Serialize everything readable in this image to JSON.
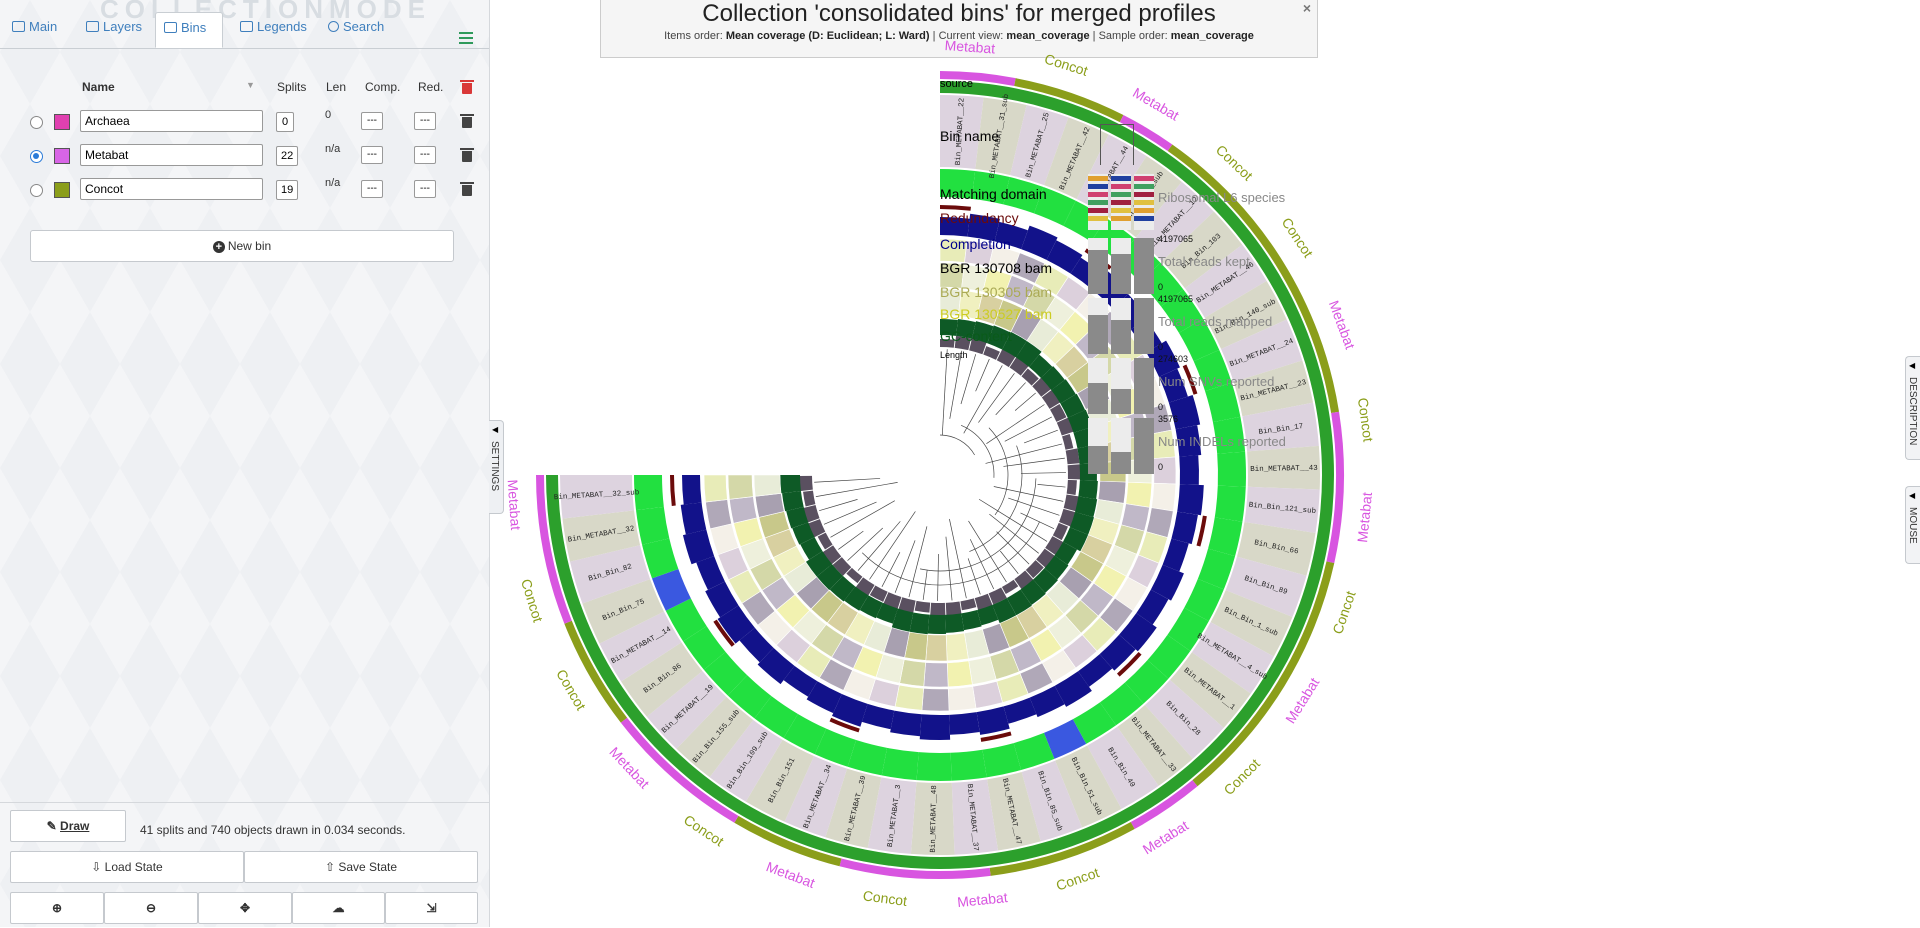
{
  "panel": {
    "watermark": "COLLECTIONMODE",
    "tabs": [
      {
        "label": "Main",
        "icon": "image-icon"
      },
      {
        "label": "Layers",
        "icon": "layers-icon"
      },
      {
        "label": "Bins",
        "icon": "bins-icon"
      },
      {
        "label": "Legends",
        "icon": "legends-icon"
      },
      {
        "label": "Search",
        "icon": "search-icon"
      }
    ],
    "active_tab": "Bins",
    "columns": {
      "name": "Name",
      "splits": "Splits",
      "len": "Len",
      "comp": "Comp.",
      "red": "Red."
    },
    "bins": [
      {
        "name": "Archaea",
        "color": "#e040b0",
        "splits": "0",
        "len": "0",
        "comp": "---",
        "red": "---",
        "selected": false
      },
      {
        "name": "Metabat",
        "color": "#d865e6",
        "splits": "22",
        "len": "n/a",
        "comp": "---",
        "red": "---",
        "selected": true
      },
      {
        "name": "Concot",
        "color": "#8b9e1a",
        "splits": "19",
        "len": "n/a",
        "comp": "---",
        "red": "---",
        "selected": false
      }
    ],
    "new_bin_label": "New bin",
    "draw_label": "Draw",
    "status_text": "41 splits and 740 objects drawn in 0.034 seconds.",
    "load_state_label": "Load State",
    "save_state_label": "Save State",
    "bottom_icons": [
      "zoom-in-icon",
      "zoom-out-icon",
      "center-icon",
      "upload-icon",
      "download-svg-icon"
    ]
  },
  "settings_tab": "SETTINGS",
  "right_tabs": [
    "DESCRIPTION",
    "MOUSE"
  ],
  "title": {
    "main": "Collection 'consolidated bins' for merged profiles",
    "items_order_label": "Items order:",
    "items_order_value": "Mean coverage (D: Euclidean; L: Ward)",
    "current_view_label": "Current view:",
    "current_view_value": "mean_coverage",
    "sample_order_label": "Sample order:",
    "sample_order_value": "mean_coverage",
    "close": "×"
  },
  "layer_labels": [
    {
      "text": "source",
      "color": "#000000"
    },
    {
      "text": "Bin name",
      "color": "#000000"
    },
    {
      "text": "Matching domain",
      "color": "#000000"
    },
    {
      "text": "Redundancy",
      "color": "#6b0b0b"
    },
    {
      "text": "Completion",
      "color": "#00008b"
    },
    {
      "text": "BGR 130708 bam",
      "color": "#000000"
    },
    {
      "text": "BGR 130305 bam",
      "color": "#aaaa55"
    },
    {
      "text": "BGR 130527 bam",
      "color": "#cccc22"
    },
    {
      "text": "GC-content",
      "color": "#0a5a1a"
    },
    {
      "text": "Length",
      "color": "#000000"
    }
  ],
  "sample_layers": [
    {
      "name": "Ribosomal L6 species",
      "max": "",
      "min": ""
    },
    {
      "name": "Total reads kept",
      "max": "4197065",
      "min": "0"
    },
    {
      "name": "Total reads mapped",
      "max": "4197065",
      "min": "0"
    },
    {
      "name": "Num SNVs reported",
      "max": "274603",
      "min": "0"
    },
    {
      "name": "Num INDELs reported",
      "max": "3576",
      "min": "0"
    }
  ],
  "bin_labels": [
    "Bin_METABAT__32_sub",
    "Bin_METABAT__32",
    "Bin_Bin_82",
    "Bin_Bin_75",
    "Bin_METABAT__14",
    "Bin_Bin_86",
    "Bin_METABAT__19",
    "Bin_Bin_155_sub",
    "Bin_Bin_109_sub",
    "Bin_Bin_151",
    "Bin_METABAT__34",
    "Bin_METABAT__39",
    "Bin_METABAT__3",
    "Bin_METABAT__48",
    "Bin_METABAT__37",
    "Bin_METABAT__47",
    "Bin_Bin_85_sub",
    "Bin_Bin_51_sub",
    "Bin_Bin_40",
    "Bin_METABAT__33",
    "Bin_Bin_28",
    "Bin_METABAT__1",
    "Bin_METABAT__4_sub",
    "Bin_Bin_1_sub",
    "Bin_Bin_89",
    "Bin_Bin_66",
    "Bin_Bin_121_sub",
    "Bin_METABAT__43",
    "Bin_Bin_17",
    "Bin_METABAT__23",
    "Bin_METABAT__24",
    "Bin_Bin_140_sub",
    "Bin_METABAT__46",
    "Bin_Bin_103",
    "Bin_METABAT__12",
    "Bin_Bin_27_sub",
    "Bin_METABAT__44",
    "Bin_METABAT__42",
    "Bin_METABAT__25",
    "Bin_METABAT__31_sub",
    "Bin_METABAT__22"
  ],
  "bin_collection_labels": [
    {
      "text": "Metabat",
      "color": "#d855e0"
    },
    {
      "text": "Concot",
      "color": "#8b9e1a"
    },
    {
      "text": "Metabat",
      "color": "#d855e0"
    },
    {
      "text": "Concot",
      "color": "#8b9e1a"
    },
    {
      "text": "Concot",
      "color": "#8b9e1a"
    },
    {
      "text": "Metabat",
      "color": "#d855e0"
    },
    {
      "text": "Concot",
      "color": "#8b9e1a"
    },
    {
      "text": "Metabat",
      "color": "#d855e0"
    },
    {
      "text": "Concot",
      "color": "#8b9e1a"
    },
    {
      "text": "Metabat",
      "color": "#d855e0"
    },
    {
      "text": "Concot",
      "color": "#8b9e1a"
    },
    {
      "text": "Metabat",
      "color": "#d855e0"
    },
    {
      "text": "Concot",
      "color": "#8b9e1a"
    },
    {
      "text": "Metabat",
      "color": "#d855e0"
    },
    {
      "text": "Concot",
      "color": "#8b9e1a"
    },
    {
      "text": "Metabat",
      "color": "#d855e0"
    },
    {
      "text": "Concot",
      "color": "#8b9e1a"
    },
    {
      "text": "Metabat",
      "color": "#d855e0"
    },
    {
      "text": "Concot",
      "color": "#8b9e1a"
    },
    {
      "text": "Concot",
      "color": "#8b9e1a"
    },
    {
      "text": "Metabat",
      "color": "#d855e0"
    }
  ],
  "colors": {
    "accent": "#3f7fbd",
    "completion": "#12128a",
    "matching_domain": "#22e040",
    "bin_name_band": "#ddd3df",
    "gc_content": "#0e5a26",
    "outer_green": "#2ca02c"
  }
}
